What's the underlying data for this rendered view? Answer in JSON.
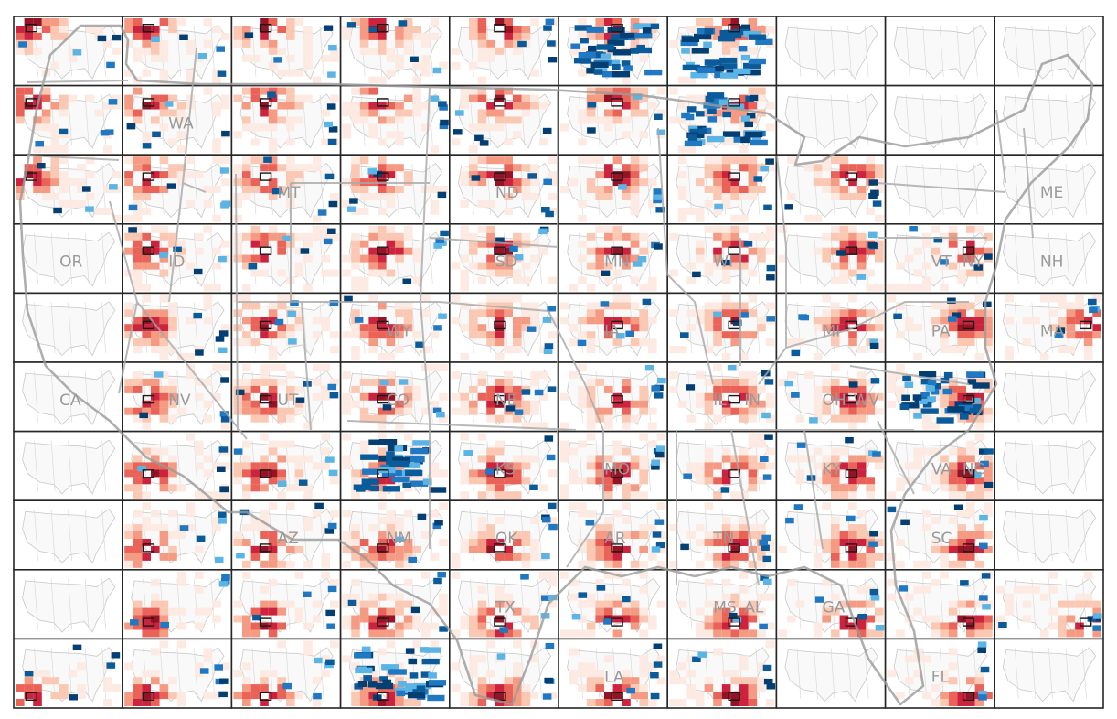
{
  "grid": {
    "rows": 10,
    "cols": 10
  },
  "colors": {
    "red_scale": [
      "#fde8df",
      "#fbc4ad",
      "#f4937a",
      "#e8564a",
      "#c8102e",
      "#8b0012"
    ],
    "blue_scale": [
      "#5ab4e5",
      "#1f78c1",
      "#0b5b9b",
      "#043f73"
    ],
    "outline": "#9a9a9a"
  },
  "state_labels": [
    {
      "text": "WA",
      "cell": [
        1,
        1
      ]
    },
    {
      "text": "MT",
      "cell": [
        2,
        2
      ]
    },
    {
      "text": "ND",
      "cell": [
        4,
        2
      ]
    },
    {
      "text": "ME",
      "cell": [
        9,
        2
      ]
    },
    {
      "text": "OR",
      "cell": [
        0,
        3
      ]
    },
    {
      "text": "ID",
      "cell": [
        1,
        3
      ]
    },
    {
      "text": "MN",
      "cell": [
        5,
        3
      ]
    },
    {
      "text": "VT",
      "cell": [
        8,
        3
      ]
    },
    {
      "text": "NH",
      "cell": [
        9,
        3
      ]
    },
    {
      "text": "SD",
      "cell": [
        4,
        3
      ]
    },
    {
      "text": "NY",
      "cell": [
        8,
        3
      ]
    },
    {
      "text": "WI",
      "cell": [
        6,
        3
      ]
    },
    {
      "text": "WY",
      "cell": [
        3,
        4
      ]
    },
    {
      "text": "MA",
      "cell": [
        9,
        4
      ]
    },
    {
      "text": "MI",
      "cell": [
        7,
        4
      ]
    },
    {
      "text": "IA",
      "cell": [
        5,
        4
      ]
    },
    {
      "text": "PA",
      "cell": [
        8,
        4
      ]
    },
    {
      "text": "NV",
      "cell": [
        1,
        5
      ]
    },
    {
      "text": "NE",
      "cell": [
        4,
        5
      ]
    },
    {
      "text": "CA",
      "cell": [
        0,
        5
      ]
    },
    {
      "text": "UT",
      "cell": [
        2,
        5
      ]
    },
    {
      "text": "CO",
      "cell": [
        3,
        5
      ]
    },
    {
      "text": "IL",
      "cell": [
        6,
        5
      ]
    },
    {
      "text": "IN",
      "cell": [
        6,
        5
      ]
    },
    {
      "text": "OH",
      "cell": [
        7,
        5
      ]
    },
    {
      "text": "WV",
      "cell": [
        7,
        5
      ]
    },
    {
      "text": "KS",
      "cell": [
        4,
        6
      ]
    },
    {
      "text": "MO",
      "cell": [
        5,
        6
      ]
    },
    {
      "text": "KY",
      "cell": [
        7,
        6
      ]
    },
    {
      "text": "VA",
      "cell": [
        8,
        6
      ]
    },
    {
      "text": "NC",
      "cell": [
        8,
        6
      ]
    },
    {
      "text": "AZ",
      "cell": [
        2,
        7
      ]
    },
    {
      "text": "NM",
      "cell": [
        3,
        7
      ]
    },
    {
      "text": "OK",
      "cell": [
        4,
        7
      ]
    },
    {
      "text": "AR",
      "cell": [
        5,
        7
      ]
    },
    {
      "text": "TN",
      "cell": [
        6,
        7
      ]
    },
    {
      "text": "SC",
      "cell": [
        8,
        7
      ]
    },
    {
      "text": "MS",
      "cell": [
        6,
        8
      ]
    },
    {
      "text": "AL",
      "cell": [
        6,
        8
      ]
    },
    {
      "text": "GA",
      "cell": [
        7,
        8
      ]
    },
    {
      "text": "LA",
      "cell": [
        5,
        9
      ]
    },
    {
      "text": "FL",
      "cell": [
        8,
        9
      ]
    },
    {
      "text": "TX",
      "cell": [
        4,
        8
      ]
    }
  ],
  "blank_cells": [
    [
      0,
      3
    ],
    [
      0,
      4
    ],
    [
      0,
      5
    ],
    [
      0,
      6
    ],
    [
      0,
      7
    ],
    [
      0,
      8
    ],
    [
      7,
      0
    ],
    [
      7,
      1
    ],
    [
      7,
      9
    ],
    [
      8,
      0
    ],
    [
      8,
      1
    ],
    [
      8,
      2
    ],
    [
      9,
      0
    ],
    [
      9,
      1
    ],
    [
      9,
      2
    ],
    [
      9,
      3
    ],
    [
      9,
      5
    ],
    [
      9,
      6
    ],
    [
      9,
      7
    ],
    [
      9,
      9
    ]
  ],
  "blue_heavy_cells": [
    [
      3,
      6
    ],
    [
      3,
      9
    ],
    [
      5,
      0
    ],
    [
      6,
      0
    ],
    [
      6,
      1
    ],
    [
      8,
      5
    ]
  ]
}
